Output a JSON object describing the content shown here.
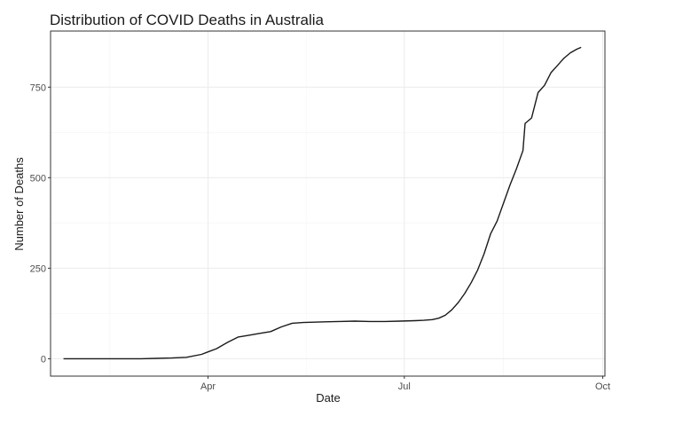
{
  "chart_data": {
    "type": "line",
    "title": "Distribution of COVID Deaths in Australia",
    "xlabel": "Date",
    "ylabel": "Number of Deaths",
    "x_axis_type": "date",
    "xlim": [
      "2020-01-19",
      "2020-10-02"
    ],
    "ylim": [
      -48,
      905
    ],
    "x_ticks": [
      {
        "value": "2020-04-01",
        "label": "Apr"
      },
      {
        "value": "2020-07-01",
        "label": "Jul"
      },
      {
        "value": "2020-10-01",
        "label": "Oct"
      }
    ],
    "y_ticks": [
      {
        "value": 0,
        "label": "0"
      },
      {
        "value": 250,
        "label": "250"
      },
      {
        "value": 500,
        "label": "500"
      },
      {
        "value": 750,
        "label": "750"
      }
    ],
    "grid": true,
    "legend": "none",
    "line_color": "#1a1a1a",
    "series": [
      {
        "x": [
          "2020-01-25",
          "2020-02-15",
          "2020-03-01",
          "2020-03-08",
          "2020-03-15",
          "2020-03-22",
          "2020-03-29",
          "2020-04-01",
          "2020-04-05",
          "2020-04-10",
          "2020-04-15",
          "2020-04-20",
          "2020-04-25",
          "2020-04-30",
          "2020-05-05",
          "2020-05-10",
          "2020-05-15",
          "2020-05-20",
          "2020-05-25",
          "2020-06-01",
          "2020-06-08",
          "2020-06-15",
          "2020-06-22",
          "2020-06-29",
          "2020-07-06",
          "2020-07-10",
          "2020-07-14",
          "2020-07-17",
          "2020-07-20",
          "2020-07-23",
          "2020-07-26",
          "2020-07-29",
          "2020-08-01",
          "2020-08-04",
          "2020-08-07",
          "2020-08-10",
          "2020-08-13",
          "2020-08-16",
          "2020-08-19",
          "2020-08-22",
          "2020-08-25",
          "2020-08-26",
          "2020-08-29",
          "2020-09-01",
          "2020-09-04",
          "2020-09-07",
          "2020-09-10",
          "2020-09-13",
          "2020-09-16",
          "2020-09-19",
          "2020-09-21"
        ],
        "y": [
          0,
          0,
          0,
          1,
          2,
          4,
          12,
          19,
          28,
          45,
          60,
          65,
          70,
          75,
          88,
          98,
          100,
          101,
          102,
          103,
          104,
          103,
          103,
          104,
          105,
          106,
          108,
          112,
          120,
          135,
          155,
          180,
          210,
          245,
          290,
          345,
          380,
          430,
          480,
          525,
          575,
          650,
          665,
          735,
          755,
          790,
          810,
          830,
          845,
          855,
          860
        ]
      }
    ]
  }
}
